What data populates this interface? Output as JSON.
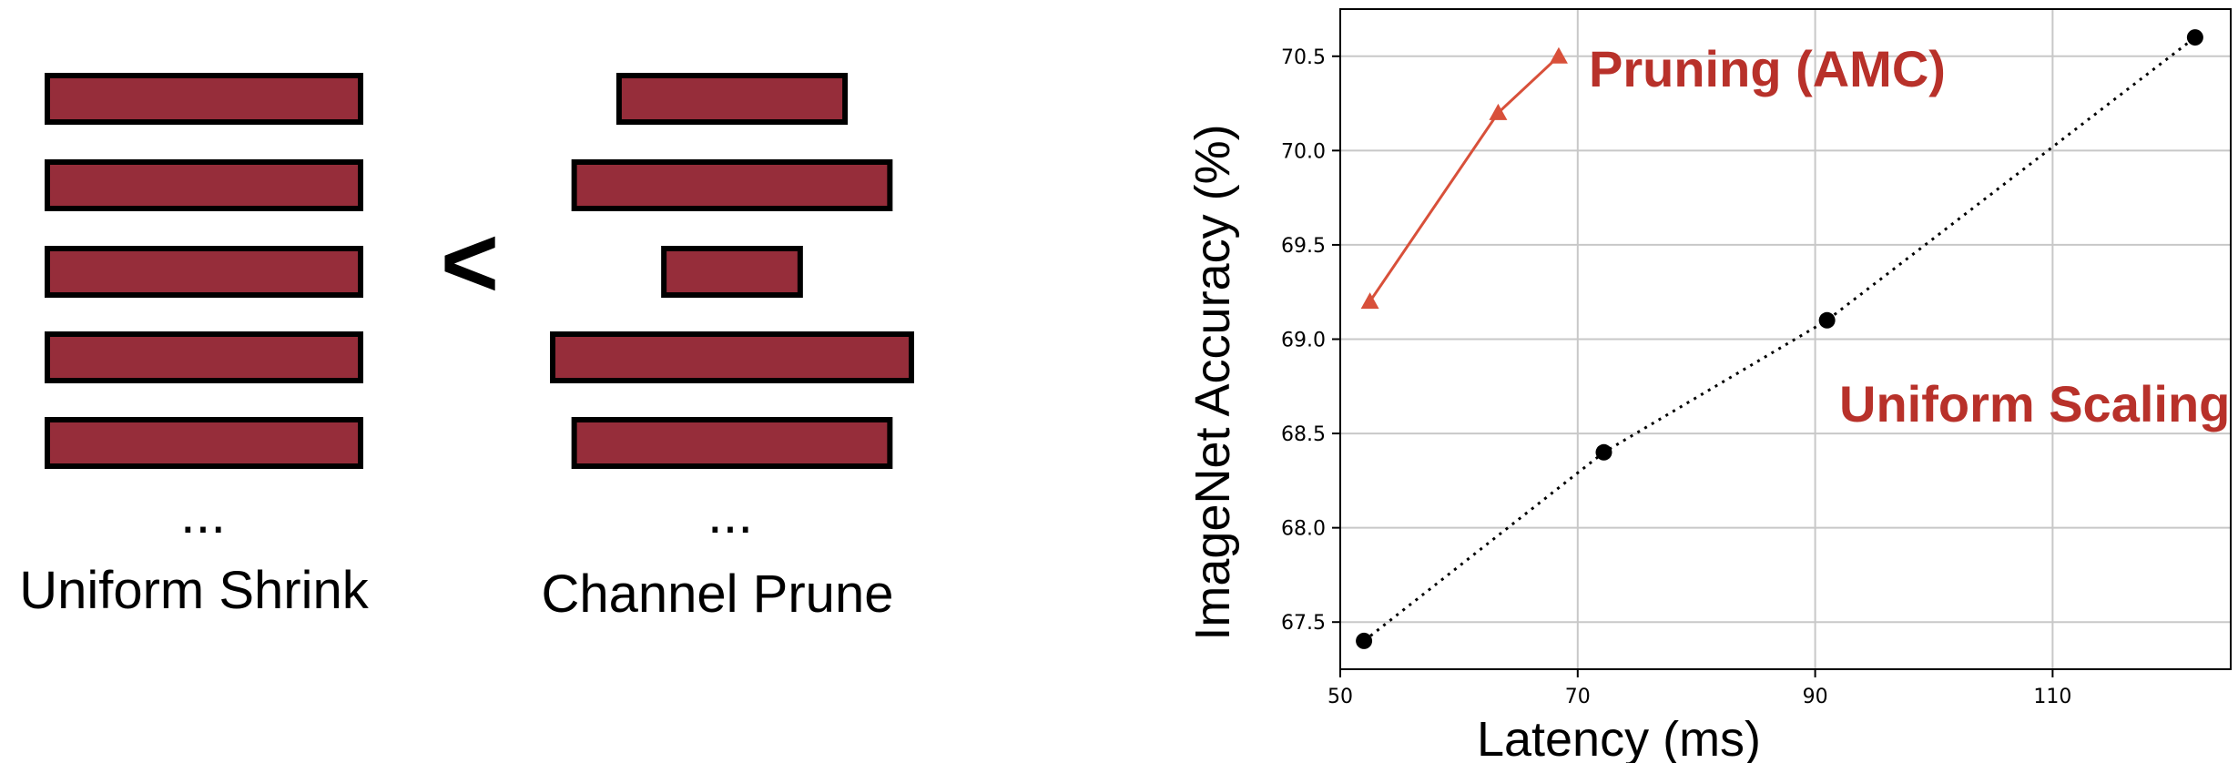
{
  "diagram": {
    "left_caption": "Uniform Shrink",
    "right_caption": "Channel Prune",
    "comparison_symbol": "<",
    "ellipsis": "...",
    "bar_color": "#962d3a",
    "bar_border": "#000000",
    "left_bar_relative_widths": [
      1,
      1,
      1,
      1,
      1
    ],
    "right_bar_relative_widths": [
      0.63,
      0.88,
      0.38,
      1.0,
      0.88
    ]
  },
  "chart_data": {
    "type": "line",
    "xlabel": "Latency (ms)",
    "ylabel": "ImageNet Accuracy (%)",
    "xlim": [
      50,
      125
    ],
    "ylim": [
      67.25,
      70.75
    ],
    "xticks": [
      50,
      70,
      90,
      110
    ],
    "yticks": [
      67.5,
      68.0,
      68.5,
      69.0,
      69.5,
      70.0,
      70.5
    ],
    "xtick_labels": [
      "50",
      "70",
      "90",
      "110"
    ],
    "ytick_labels": [
      "67.5",
      "68.0",
      "68.5",
      "69.0",
      "69.5",
      "70.0",
      "70.5"
    ],
    "grid": true,
    "series": [
      {
        "name": "Pruning (AMC)",
        "color": "#d8503a",
        "marker": "triangle",
        "line_style": "solid",
        "x": [
          52.5,
          63.3,
          68.4
        ],
        "y": [
          69.2,
          70.2,
          70.5
        ]
      },
      {
        "name": "Uniform Scaling",
        "color": "#000000",
        "marker": "circle",
        "line_style": "dotted",
        "x": [
          52.0,
          72.2,
          91.0,
          122.0
        ],
        "y": [
          67.4,
          68.4,
          69.1,
          70.6
        ]
      }
    ],
    "label_color": "#b8312a"
  }
}
